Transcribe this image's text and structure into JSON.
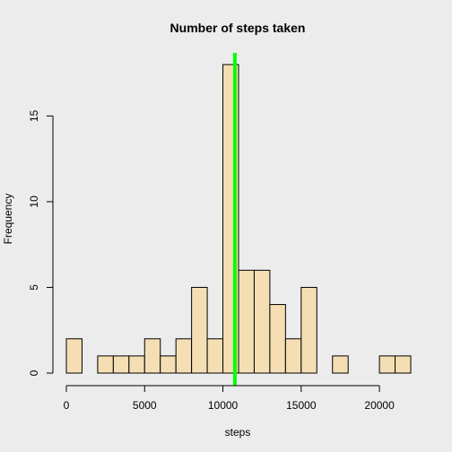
{
  "chart_data": {
    "type": "bar",
    "title": "Number of steps taken",
    "xlabel": "steps",
    "ylabel": "Frequency",
    "xlim": [
      0,
      22000
    ],
    "ylim": [
      0,
      18
    ],
    "bin_width": 1000,
    "bins": [
      {
        "start": 0,
        "end": 1000,
        "count": 2
      },
      {
        "start": 1000,
        "end": 2000,
        "count": 0
      },
      {
        "start": 2000,
        "end": 3000,
        "count": 1
      },
      {
        "start": 3000,
        "end": 4000,
        "count": 1
      },
      {
        "start": 4000,
        "end": 5000,
        "count": 1
      },
      {
        "start": 5000,
        "end": 6000,
        "count": 2
      },
      {
        "start": 6000,
        "end": 7000,
        "count": 1
      },
      {
        "start": 7000,
        "end": 8000,
        "count": 2
      },
      {
        "start": 8000,
        "end": 9000,
        "count": 5
      },
      {
        "start": 9000,
        "end": 10000,
        "count": 2
      },
      {
        "start": 10000,
        "end": 11000,
        "count": 18
      },
      {
        "start": 11000,
        "end": 12000,
        "count": 6
      },
      {
        "start": 12000,
        "end": 13000,
        "count": 6
      },
      {
        "start": 13000,
        "end": 14000,
        "count": 4
      },
      {
        "start": 14000,
        "end": 15000,
        "count": 2
      },
      {
        "start": 15000,
        "end": 16000,
        "count": 5
      },
      {
        "start": 16000,
        "end": 17000,
        "count": 0
      },
      {
        "start": 17000,
        "end": 18000,
        "count": 1
      },
      {
        "start": 18000,
        "end": 19000,
        "count": 0
      },
      {
        "start": 19000,
        "end": 20000,
        "count": 0
      },
      {
        "start": 20000,
        "end": 21000,
        "count": 1
      },
      {
        "start": 21000,
        "end": 22000,
        "count": 1
      }
    ],
    "x_ticks": [
      0,
      5000,
      10000,
      15000,
      20000
    ],
    "y_ticks": [
      0,
      5,
      10,
      15
    ],
    "mean_line": 10766,
    "mean_line_color": "#00ff00",
    "bar_color": "#f5deb3",
    "background_color": "#ececec",
    "grid": false
  }
}
